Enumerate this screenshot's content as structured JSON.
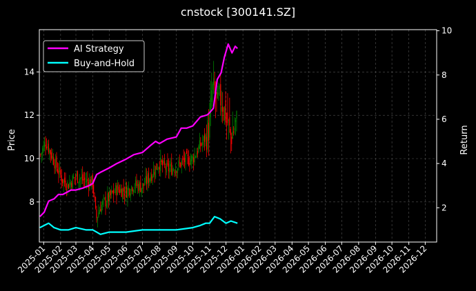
{
  "chart_data": {
    "type": "line",
    "title": "cnstock [300141.SZ]",
    "ylabel_left": "Price",
    "ylabel_right": "Return",
    "ylim_left": [
      6.15,
      15.95
    ],
    "ylim_right": [
      0.45,
      10.05
    ],
    "left_ticks": [
      "8",
      "10",
      "12",
      "14"
    ],
    "right_ticks": [
      "2",
      "4",
      "6",
      "8",
      "10"
    ],
    "x_ticks": [
      "2025-01",
      "2025-02",
      "2025-03",
      "2025-04",
      "2025-05",
      "2025-06",
      "2025-07",
      "2025-08",
      "2025-09",
      "2025-10",
      "2025-11",
      "2025-12",
      "2026-01",
      "2026-02",
      "2026-03",
      "2026-04",
      "2026-05",
      "2026-06",
      "2026-07",
      "2026-08",
      "2026-09",
      "2026-10",
      "2026-11",
      "2026-12"
    ],
    "grid": true,
    "legend_position": "top-left",
    "colors": {
      "ai_strategy": "#ff00ff",
      "buy_hold": "#00ffff",
      "candle_up": "#008000",
      "candle_down": "#ff0000",
      "grid": "#555555"
    },
    "series": [
      {
        "name": "AI Strategy",
        "axis": "right",
        "x": [
          "2024-12-25",
          "2025-01-02",
          "2025-01-10",
          "2025-01-20",
          "2025-01-28",
          "2025-02-05",
          "2025-02-20",
          "2025-03-01",
          "2025-03-15",
          "2025-03-25",
          "2025-04-01",
          "2025-04-08",
          "2025-04-15",
          "2025-05-01",
          "2025-05-15",
          "2025-06-01",
          "2025-06-15",
          "2025-07-01",
          "2025-07-15",
          "2025-07-25",
          "2025-08-01",
          "2025-08-15",
          "2025-09-01",
          "2025-09-10",
          "2025-09-20",
          "2025-10-01",
          "2025-10-15",
          "2025-10-28",
          "2025-11-01",
          "2025-11-08",
          "2025-11-15",
          "2025-11-22",
          "2025-11-28",
          "2025-12-05",
          "2025-12-12",
          "2025-12-18",
          "2025-12-22"
        ],
        "values": [
          1.6,
          1.8,
          2.3,
          2.4,
          2.6,
          2.6,
          2.8,
          2.8,
          2.9,
          3.0,
          3.1,
          3.5,
          3.6,
          3.8,
          4.0,
          4.2,
          4.4,
          4.5,
          4.8,
          5.0,
          4.9,
          5.1,
          5.2,
          5.6,
          5.6,
          5.7,
          6.1,
          6.2,
          6.3,
          6.5,
          7.8,
          8.1,
          8.8,
          9.4,
          9.0,
          9.3,
          9.2
        ]
      },
      {
        "name": "Buy-and-Hold",
        "axis": "right",
        "x": [
          "2024-12-25",
          "2025-01-02",
          "2025-01-10",
          "2025-01-20",
          "2025-02-01",
          "2025-02-15",
          "2025-03-01",
          "2025-03-20",
          "2025-04-01",
          "2025-04-08",
          "2025-04-15",
          "2025-05-01",
          "2025-06-01",
          "2025-07-01",
          "2025-08-01",
          "2025-09-01",
          "2025-10-01",
          "2025-10-15",
          "2025-10-25",
          "2025-11-01",
          "2025-11-10",
          "2025-11-20",
          "2025-12-01",
          "2025-12-10",
          "2025-12-22"
        ],
        "values": [
          1.1,
          1.2,
          1.3,
          1.1,
          1.0,
          1.0,
          1.1,
          1.0,
          1.0,
          0.9,
          0.8,
          0.9,
          0.9,
          1.0,
          1.0,
          1.0,
          1.1,
          1.2,
          1.3,
          1.3,
          1.6,
          1.5,
          1.3,
          1.4,
          1.3
        ]
      }
    ],
    "price_path": {
      "axis": "left",
      "x": [
        "2024-12-25",
        "2025-01-05",
        "2025-01-15",
        "2025-01-25",
        "2025-02-05",
        "2025-02-15",
        "2025-03-01",
        "2025-03-15",
        "2025-04-01",
        "2025-04-07",
        "2025-04-15",
        "2025-05-01",
        "2025-05-15",
        "2025-06-01",
        "2025-06-15",
        "2025-07-01",
        "2025-07-15",
        "2025-08-01",
        "2025-08-15",
        "2025-09-01",
        "2025-09-15",
        "2025-10-01",
        "2025-10-15",
        "2025-10-25",
        "2025-11-01",
        "2025-11-05",
        "2025-11-10",
        "2025-11-15",
        "2025-11-22",
        "2025-12-01",
        "2025-12-10",
        "2025-12-22"
      ],
      "values": [
        10.1,
        10.8,
        10.2,
        9.6,
        9.0,
        8.8,
        9.2,
        9.0,
        8.9,
        7.2,
        7.8,
        8.2,
        8.6,
        8.5,
        8.8,
        8.7,
        9.2,
        9.8,
        9.5,
        9.6,
        9.9,
        10.0,
        10.6,
        11.0,
        11.5,
        13.2,
        13.0,
        12.5,
        12.8,
        12.0,
        11.0,
        11.8
      ]
    }
  }
}
